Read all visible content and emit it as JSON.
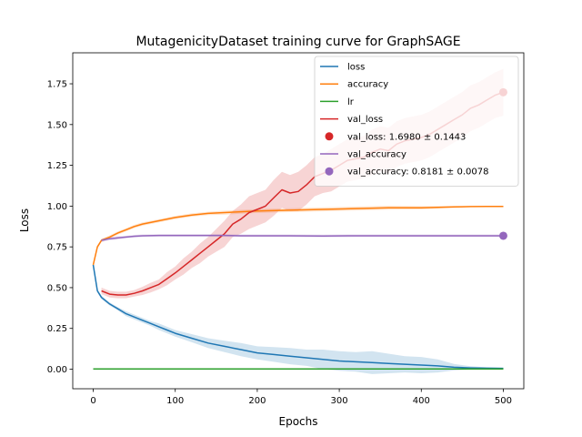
{
  "chart_data": {
    "type": "line",
    "title": "MutagenicityDataset training curve for GraphSAGE",
    "xlabel": "Epochs",
    "ylabel": "Loss",
    "xlim": [
      -25,
      525
    ],
    "ylim": [
      -0.12,
      1.94
    ],
    "xticks": [
      0,
      100,
      200,
      300,
      400,
      500
    ],
    "yticks": [
      0.0,
      0.25,
      0.5,
      0.75,
      1.0,
      1.25,
      1.5,
      1.75
    ],
    "ytick_labels": [
      "0.00",
      "0.25",
      "0.50",
      "0.75",
      "1.00",
      "1.25",
      "1.50",
      "1.75"
    ],
    "grid": false,
    "legend_position": "top-right",
    "legend": [
      {
        "label": "loss",
        "kind": "line",
        "color": "#1f77b4"
      },
      {
        "label": "accuracy",
        "kind": "line",
        "color": "#ff7f0e"
      },
      {
        "label": "lr",
        "kind": "line",
        "color": "#2ca02c"
      },
      {
        "label": "val_loss",
        "kind": "line",
        "color": "#d62728"
      },
      {
        "label": "val_loss: 1.6980 ± 0.1443",
        "kind": "marker",
        "color": "#d62728"
      },
      {
        "label": "val_accuracy",
        "kind": "line",
        "color": "#9467bd"
      },
      {
        "label": "val_accuracy: 0.8181 ± 0.0078",
        "kind": "marker",
        "color": "#9467bd"
      }
    ],
    "series": [
      {
        "name": "loss",
        "color": "#1f77b4",
        "x": [
          0,
          5,
          10,
          20,
          30,
          40,
          50,
          60,
          70,
          80,
          90,
          100,
          120,
          140,
          160,
          180,
          200,
          220,
          240,
          260,
          280,
          300,
          320,
          340,
          360,
          380,
          400,
          420,
          440,
          460,
          480,
          500
        ],
        "y": [
          0.64,
          0.48,
          0.44,
          0.4,
          0.37,
          0.34,
          0.32,
          0.3,
          0.28,
          0.26,
          0.24,
          0.22,
          0.19,
          0.16,
          0.14,
          0.12,
          0.1,
          0.09,
          0.08,
          0.07,
          0.06,
          0.05,
          0.045,
          0.04,
          0.035,
          0.03,
          0.025,
          0.02,
          0.012,
          0.008,
          0.006,
          0.005
        ],
        "band": [
          0.01,
          0.01,
          0.01,
          0.01,
          0.01,
          0.015,
          0.015,
          0.015,
          0.015,
          0.02,
          0.02,
          0.02,
          0.025,
          0.03,
          0.035,
          0.04,
          0.04,
          0.045,
          0.05,
          0.05,
          0.06,
          0.06,
          0.06,
          0.07,
          0.06,
          0.05,
          0.05,
          0.04,
          0.02,
          0.01,
          0.005,
          0.004
        ]
      },
      {
        "name": "accuracy",
        "color": "#ff7f0e",
        "x": [
          0,
          5,
          10,
          20,
          30,
          40,
          50,
          60,
          80,
          100,
          120,
          140,
          160,
          180,
          200,
          240,
          280,
          320,
          360,
          400,
          440,
          460,
          480,
          500
        ],
        "y": [
          0.64,
          0.75,
          0.79,
          0.81,
          0.835,
          0.855,
          0.875,
          0.89,
          0.91,
          0.93,
          0.945,
          0.955,
          0.96,
          0.965,
          0.97,
          0.975,
          0.98,
          0.985,
          0.99,
          0.99,
          0.995,
          0.997,
          0.998,
          0.998
        ],
        "band": [
          0.01,
          0.01,
          0.01,
          0.01,
          0.01,
          0.01,
          0.01,
          0.01,
          0.01,
          0.01,
          0.01,
          0.01,
          0.012,
          0.012,
          0.012,
          0.012,
          0.012,
          0.012,
          0.012,
          0.01,
          0.006,
          0.003,
          0.002,
          0.002
        ]
      },
      {
        "name": "lr",
        "color": "#2ca02c",
        "x": [
          0,
          500
        ],
        "y": [
          0.001,
          0.001
        ],
        "band": [
          0,
          0
        ]
      },
      {
        "name": "val_loss",
        "color": "#d62728",
        "x": [
          10,
          20,
          30,
          40,
          50,
          60,
          70,
          80,
          90,
          100,
          110,
          120,
          130,
          140,
          150,
          160,
          170,
          180,
          190,
          200,
          210,
          220,
          230,
          240,
          250,
          260,
          270,
          280,
          290,
          300,
          310,
          320,
          330,
          340,
          350,
          360,
          370,
          380,
          390,
          400,
          410,
          420,
          430,
          440,
          450,
          460,
          470,
          480,
          490,
          500
        ],
        "y": [
          0.48,
          0.46,
          0.455,
          0.455,
          0.465,
          0.48,
          0.5,
          0.52,
          0.555,
          0.59,
          0.63,
          0.67,
          0.71,
          0.75,
          0.79,
          0.83,
          0.89,
          0.92,
          0.96,
          0.98,
          1.0,
          1.05,
          1.1,
          1.08,
          1.09,
          1.13,
          1.18,
          1.2,
          1.22,
          1.25,
          1.28,
          1.29,
          1.3,
          1.33,
          1.35,
          1.34,
          1.38,
          1.4,
          1.41,
          1.42,
          1.44,
          1.47,
          1.5,
          1.53,
          1.56,
          1.6,
          1.62,
          1.65,
          1.68,
          1.698
        ],
        "band": [
          0.02,
          0.02,
          0.02,
          0.02,
          0.02,
          0.025,
          0.03,
          0.03,
          0.04,
          0.04,
          0.05,
          0.05,
          0.06,
          0.06,
          0.07,
          0.08,
          0.08,
          0.09,
          0.1,
          0.1,
          0.1,
          0.11,
          0.11,
          0.11,
          0.12,
          0.12,
          0.12,
          0.12,
          0.13,
          0.13,
          0.13,
          0.13,
          0.13,
          0.14,
          0.14,
          0.14,
          0.14,
          0.14,
          0.14,
          0.14,
          0.14,
          0.14,
          0.14,
          0.14,
          0.14,
          0.14,
          0.14,
          0.14,
          0.14,
          0.144
        ]
      },
      {
        "name": "val_accuracy",
        "color": "#9467bd",
        "x": [
          10,
          20,
          30,
          40,
          50,
          60,
          80,
          100,
          120,
          140,
          160,
          180,
          200,
          240,
          280,
          320,
          360,
          400,
          440,
          480,
          500
        ],
        "y": [
          0.79,
          0.8,
          0.805,
          0.81,
          0.815,
          0.818,
          0.82,
          0.82,
          0.82,
          0.82,
          0.82,
          0.818,
          0.818,
          0.818,
          0.817,
          0.818,
          0.818,
          0.818,
          0.818,
          0.818,
          0.818
        ],
        "band": [
          0.01,
          0.01,
          0.01,
          0.008,
          0.008,
          0.008,
          0.008,
          0.008,
          0.008,
          0.008,
          0.008,
          0.008,
          0.008,
          0.008,
          0.008,
          0.008,
          0.008,
          0.008,
          0.008,
          0.008,
          0.008
        ]
      }
    ],
    "markers": [
      {
        "name": "val_loss",
        "x": 500,
        "y": 1.698,
        "color": "#d62728"
      },
      {
        "name": "val_accuracy",
        "x": 500,
        "y": 0.8181,
        "color": "#9467bd"
      }
    ]
  }
}
